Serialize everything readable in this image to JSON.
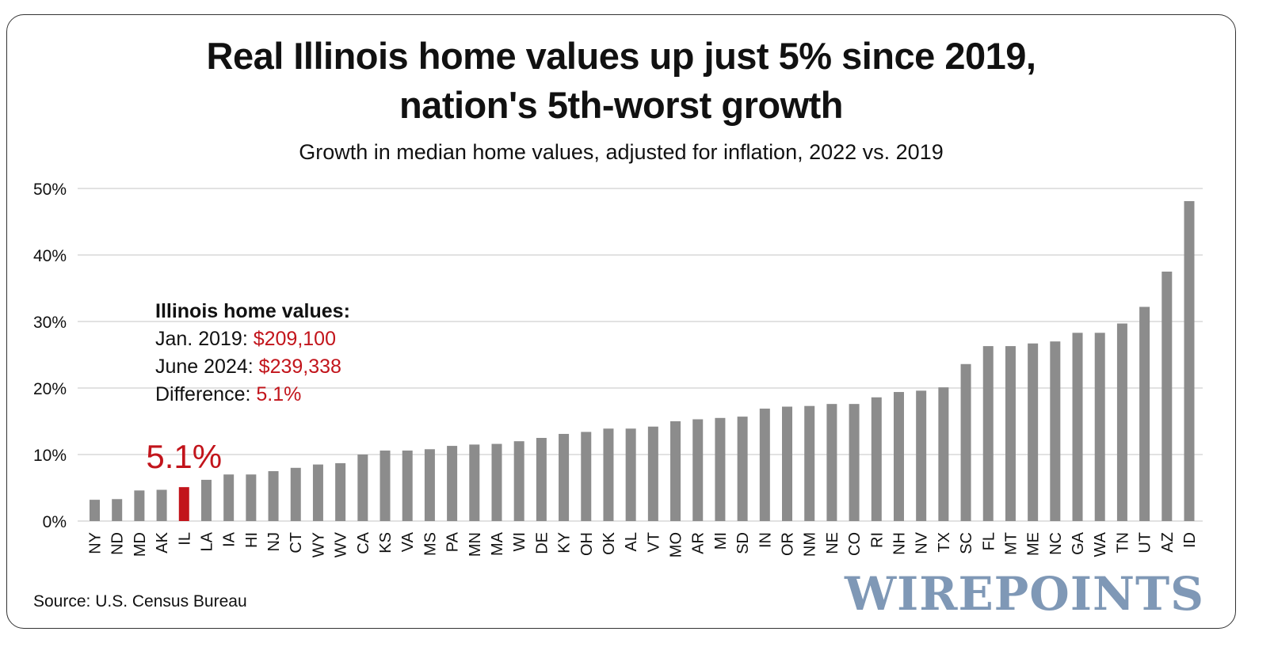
{
  "title_line1": "Real Illinois home values up just 5% since 2019,",
  "title_line2": "nation's 5th-worst growth",
  "subtitle": "Growth in median home values, adjusted for inflation, 2022 vs. 2019",
  "annotation": {
    "heading": "Illinois home values:",
    "line1_label": "Jan. 2019: ",
    "line1_value": "$209,100",
    "line2_label": "June 2024: ",
    "line2_value": "$239,338",
    "line3_label": "Difference: ",
    "line3_value": "5.1%"
  },
  "highlight_label": "5.1%",
  "source": "Source: U.S. Census Bureau",
  "logo_text": "WIREPOINTS",
  "colors": {
    "bar": "#8c8c8c",
    "highlight": "#c2141b",
    "grid": "#d9d9d9",
    "logo": "#7f98b6"
  },
  "chart_data": {
    "type": "bar",
    "categories": [
      "NY",
      "ND",
      "MD",
      "AK",
      "IL",
      "LA",
      "IA",
      "HI",
      "NJ",
      "CT",
      "WY",
      "WV",
      "CA",
      "KS",
      "VA",
      "MS",
      "PA",
      "MN",
      "MA",
      "WI",
      "DE",
      "KY",
      "OH",
      "OK",
      "AL",
      "VT",
      "MO",
      "AR",
      "MI",
      "SD",
      "IN",
      "OR",
      "NM",
      "NE",
      "CO",
      "RI",
      "NH",
      "NV",
      "TX",
      "SC",
      "FL",
      "MT",
      "ME",
      "NC",
      "GA",
      "WA",
      "TN",
      "UT",
      "AZ",
      "ID"
    ],
    "values": [
      3.2,
      3.3,
      4.6,
      4.7,
      5.1,
      6.2,
      7.0,
      7.0,
      7.5,
      8.0,
      8.5,
      8.7,
      10.0,
      10.6,
      10.6,
      10.8,
      11.3,
      11.5,
      11.6,
      12.0,
      12.5,
      13.1,
      13.4,
      13.9,
      13.9,
      14.2,
      15.0,
      15.3,
      15.5,
      15.7,
      16.9,
      17.2,
      17.3,
      17.6,
      17.6,
      18.6,
      19.4,
      19.6,
      20.1,
      23.6,
      26.3,
      26.3,
      26.7,
      27.0,
      28.3,
      28.3,
      29.7,
      32.2,
      37.5,
      48.1
    ],
    "highlight": "IL",
    "yticks": [
      "0%",
      "10%",
      "20%",
      "30%",
      "40%",
      "50%"
    ],
    "ylim": [
      0,
      50
    ],
    "grid": true
  }
}
